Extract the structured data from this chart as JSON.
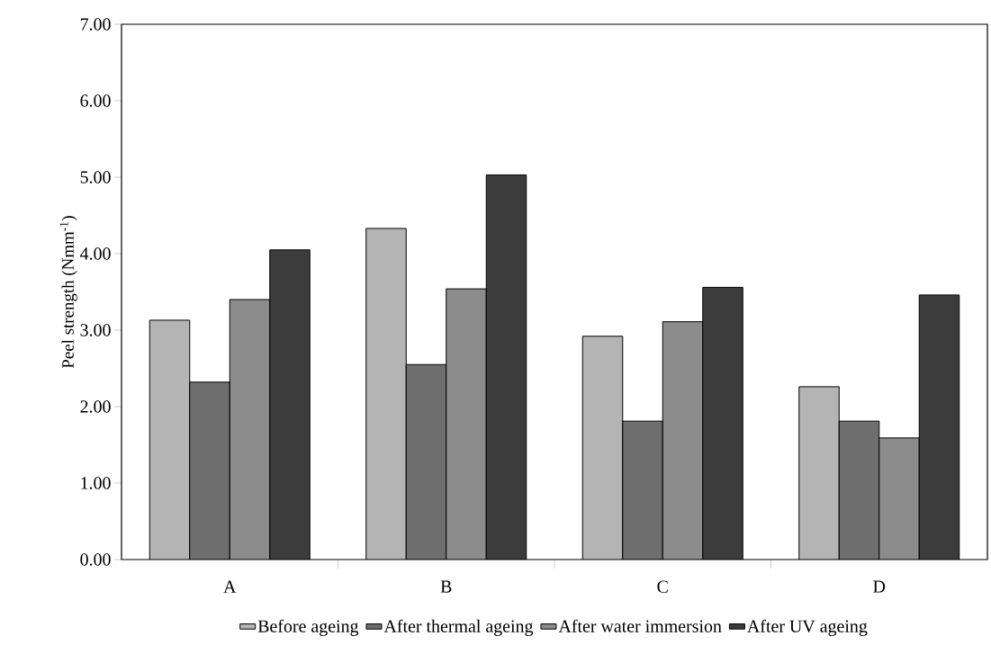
{
  "chart_data": {
    "type": "bar",
    "ylabel": "Peel strength (Nmm$^{-1}$)",
    "categories": [
      "A",
      "B",
      "C",
      "D"
    ],
    "series": [
      {
        "name": "Before ageing",
        "color": "#b4b4b4",
        "values": [
          3.13,
          4.33,
          2.92,
          2.26
        ]
      },
      {
        "name": "After thermal ageing",
        "color": "#6e6e6e",
        "values": [
          2.32,
          2.55,
          1.81,
          1.81
        ]
      },
      {
        "name": "After water immersion",
        "color": "#8c8c8c",
        "values": [
          3.4,
          3.54,
          3.11,
          1.59
        ]
      },
      {
        "name": "After UV ageing",
        "color": "#3c3c3c",
        "values": [
          4.05,
          5.03,
          3.56,
          3.46
        ]
      }
    ],
    "ylim": [
      0,
      7
    ],
    "yticks": [
      {
        "value": 0,
        "label": "0.00"
      },
      {
        "value": 1,
        "label": "1.00"
      },
      {
        "value": 2,
        "label": "2.00"
      },
      {
        "value": 3,
        "label": "3.00"
      },
      {
        "value": 4,
        "label": "4.00"
      },
      {
        "value": 5,
        "label": "5.00"
      },
      {
        "value": 6,
        "label": "6.00"
      },
      {
        "value": 7,
        "label": "7.00"
      }
    ],
    "grid": false,
    "legend": "bottom"
  }
}
